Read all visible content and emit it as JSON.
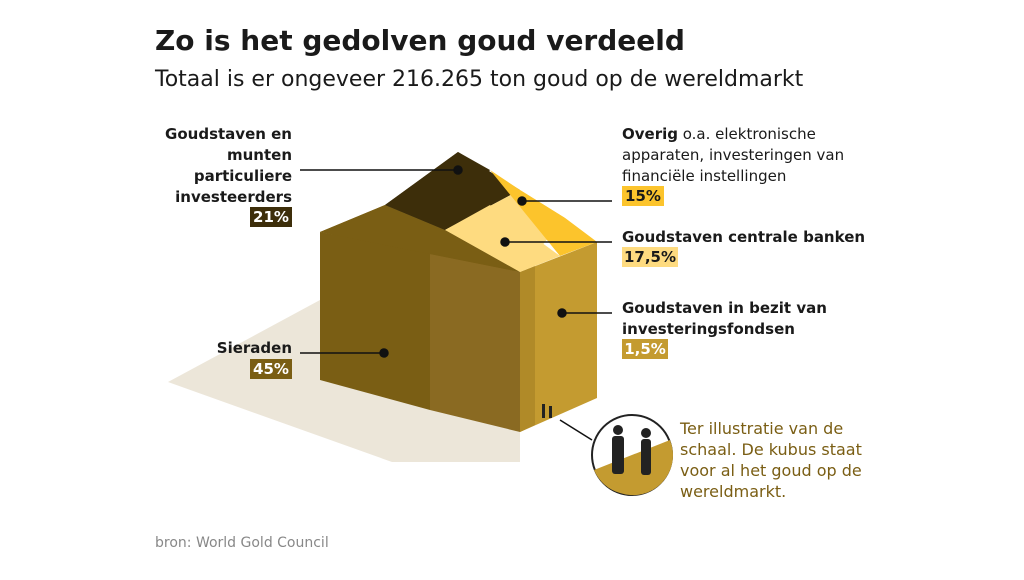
{
  "header": {
    "title": "Zo is het gedolven goud verdeeld",
    "subtitle": "Totaal is er ongeveer 216.265 ton goud op de wereldmarkt"
  },
  "segments": [
    {
      "name_lines": [
        "Goudstaven en",
        "munten",
        "particuliere",
        "investeerders"
      ],
      "share": "21%"
    },
    {
      "name": "Overig",
      "description_lines": [
        " o.a. elektronische",
        "apparaten, investeringen van",
        "financiële instellingen"
      ],
      "share": "15%"
    },
    {
      "name": "Goudstaven centrale banken",
      "share": "17,5%"
    },
    {
      "name_lines": [
        "Goudstaven in bezit van",
        "investeringsfondsen"
      ],
      "share": "1,5%"
    },
    {
      "name": "Sieraden",
      "share": "45%"
    }
  ],
  "scale_note": [
    "Ter illustratie van de",
    "schaal. De kubus staat",
    "voor al het goud op de",
    "wereldmarkt."
  ],
  "source": "bron: World Gold Council"
}
